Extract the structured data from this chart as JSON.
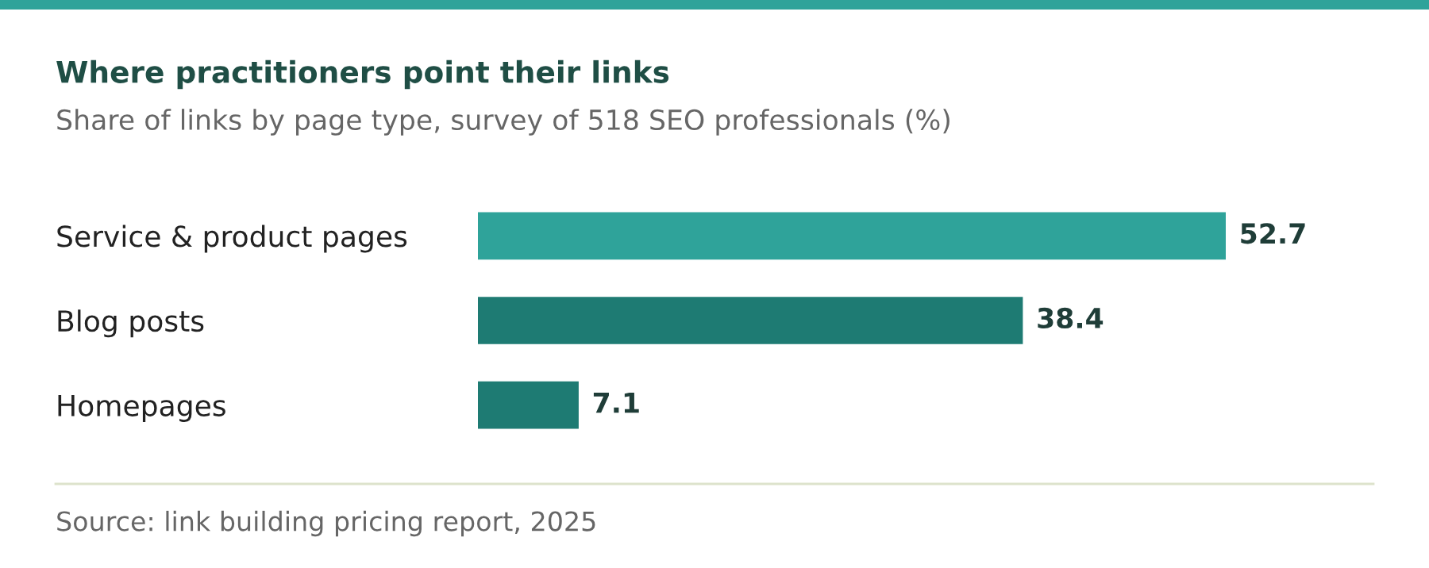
{
  "chart_data": {
    "type": "bar",
    "orientation": "horizontal",
    "title": "Where practitioners point their links",
    "subtitle": "Share of links by page type, survey of 518 SEO professionals (%)",
    "categories": [
      "Service & product pages",
      "Blog posts",
      "Homepages"
    ],
    "values": [
      52.7,
      38.4,
      7.1
    ],
    "colors": [
      "#2fa39a",
      "#1e7b73",
      "#1e7b73"
    ],
    "data_labels": true,
    "grid": false,
    "legend": false,
    "tick_labels": "y",
    "annotations": [
      "Source: link building pricing report, 2025"
    ]
  }
}
